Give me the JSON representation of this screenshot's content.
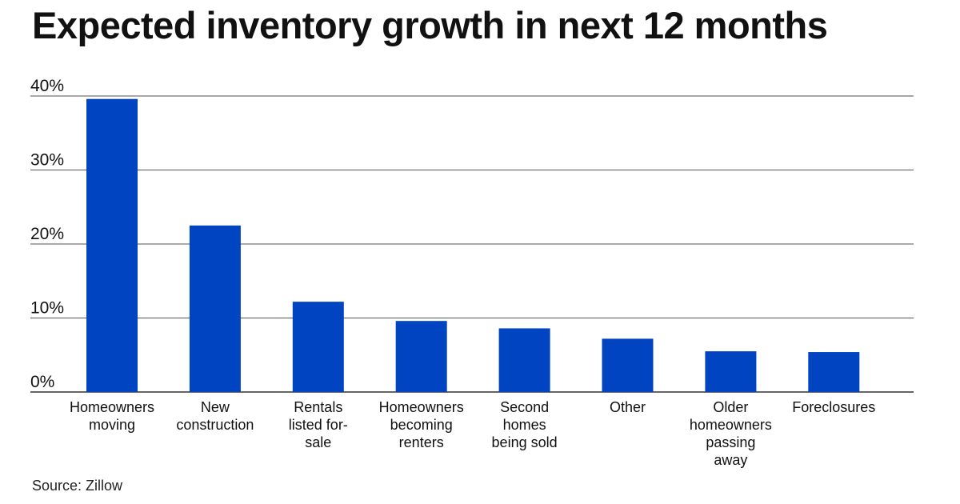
{
  "chart_data": {
    "type": "bar",
    "title": "Expected inventory growth in next 12 months",
    "categories": [
      [
        "Homeowners",
        "moving"
      ],
      [
        "New",
        "construction"
      ],
      [
        "Rentals",
        "listed for-",
        "sale"
      ],
      [
        "Homeowners",
        "becoming",
        "renters"
      ],
      [
        "Second",
        "homes",
        "being sold"
      ],
      [
        "Other"
      ],
      [
        "Older",
        "homeowners",
        "passing",
        "away"
      ],
      [
        "Foreclosures"
      ]
    ],
    "values": [
      39.6,
      22.5,
      12.2,
      9.6,
      8.6,
      7.2,
      5.5,
      5.4
    ],
    "yticks": [
      "0%",
      "10%",
      "20%",
      "30%",
      "40%"
    ],
    "ytick_values": [
      0,
      10,
      20,
      30,
      40
    ],
    "ylim": [
      0,
      40
    ],
    "grid": true,
    "bar_color": "#0044c2",
    "source": "Source: Zillow"
  }
}
